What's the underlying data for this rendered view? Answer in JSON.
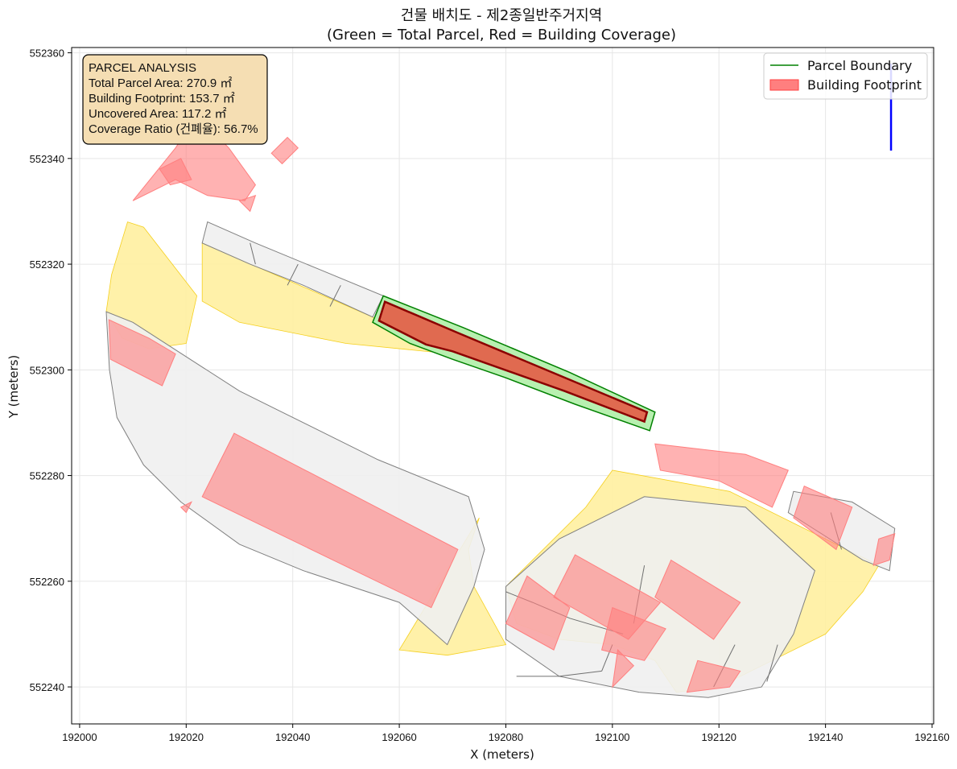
{
  "chart_data": {
    "type": "map",
    "title": "건물 배치도 - 제2종일반주거지역",
    "subtitle": "(Green = Total Parcel, Red = Building Coverage)",
    "xlabel": "X (meters)",
    "ylabel": "Y (meters)",
    "xlim": [
      191998.5,
      192160.3
    ],
    "ylim": [
      552233,
      552361
    ],
    "xticks": [
      192000,
      192020,
      192040,
      192060,
      192080,
      192100,
      192120,
      192140,
      192160
    ],
    "yticks": [
      552240,
      552260,
      552280,
      552300,
      552320,
      552340,
      552360
    ],
    "grid": true,
    "legend": {
      "position": "top-right",
      "items": [
        {
          "label": "Parcel Boundary",
          "color": "#008000",
          "kind": "line"
        },
        {
          "label": "Building Footprint",
          "color": "#ff7f7f",
          "kind": "patch"
        }
      ]
    },
    "info_box": {
      "lines": [
        "PARCEL ANALYSIS",
        "Total Parcel Area: 270.9 ㎡",
        "Building Footprint: 153.7 ㎡",
        "Uncovered Area: 117.2 ㎡",
        "Coverage Ratio (건폐율): 56.7%"
      ]
    },
    "metrics": {
      "total_parcel_area_m2": 270.9,
      "building_footprint_m2": 153.7,
      "uncovered_area_m2": 117.2,
      "coverage_ratio_pct": 56.7
    },
    "colors": {
      "parcel_edge": "#008000",
      "parcel_fill": "#b8f0b0",
      "building_edge": "#8b0000",
      "building_fill": "#e06a50",
      "other_building": "#ff7f7f",
      "road": "#fff0a0",
      "road_edge": "#f5d020",
      "neighbor_fill": "#f0f0f0",
      "neighbor_edge": "#808080",
      "north_arrow": "#0000ff",
      "info_bg": "#f5deb3"
    },
    "north_arrow": {
      "x": 192152.3,
      "y_from": 552341.5,
      "y_to": 552358
    },
    "target_parcel": [
      [
        192055,
        552309
      ],
      [
        192057,
        552314
      ],
      [
        192072,
        552308
      ],
      [
        192092,
        552299.5
      ],
      [
        192108,
        552292
      ],
      [
        192107,
        552288.5
      ],
      [
        192093,
        552293.5
      ],
      [
        192080,
        552298.5
      ],
      [
        192070,
        552302
      ],
      [
        192062,
        552305
      ]
    ],
    "target_building": [
      [
        192056.2,
        552309.3
      ],
      [
        192057.3,
        552312.9
      ],
      [
        192071,
        552307
      ],
      [
        192106.5,
        552292
      ],
      [
        192106,
        552290.2
      ],
      [
        192091,
        552296
      ],
      [
        192070,
        552303.5
      ],
      [
        192065,
        552304.8
      ]
    ],
    "neighbor_parcels": [
      [
        [
          192005,
          552311
        ],
        [
          192005.6,
          552300
        ],
        [
          192007,
          552291
        ],
        [
          192012,
          552282
        ],
        [
          192019,
          552275
        ],
        [
          192030,
          552267
        ],
        [
          192042,
          552262
        ],
        [
          192060,
          552256
        ],
        [
          192069,
          552248
        ],
        [
          192074,
          552259
        ],
        [
          192076,
          552266
        ],
        [
          192073,
          552276
        ],
        [
          192056,
          552283
        ],
        [
          192030,
          552296
        ],
        [
          192010,
          552309
        ]
      ],
      [
        [
          192024,
          552328
        ],
        [
          192023,
          552324
        ],
        [
          192032,
          552320
        ],
        [
          192042,
          552316
        ],
        [
          192055,
          552310
        ],
        [
          192057,
          552314
        ],
        [
          192045,
          552319
        ],
        [
          192033,
          552324
        ]
      ],
      [
        [
          192080,
          552259
        ],
        [
          192090,
          552268
        ],
        [
          192106,
          552276
        ],
        [
          192125,
          552274
        ],
        [
          192138,
          552262
        ],
        [
          192134,
          552250
        ],
        [
          192128,
          552240
        ],
        [
          192118,
          552238
        ],
        [
          192105,
          552239
        ],
        [
          192090,
          552242
        ],
        [
          192080,
          552249
        ]
      ],
      [
        [
          192134,
          552277
        ],
        [
          192133,
          552273
        ],
        [
          192147,
          552264
        ],
        [
          192152,
          552262
        ],
        [
          192153,
          552270
        ],
        [
          192145,
          552275
        ]
      ]
    ],
    "neighbor_lines": [
      [
        [
          192032,
          552324
        ],
        [
          192033,
          552320
        ]
      ],
      [
        [
          192041,
          552320
        ],
        [
          192039,
          552316
        ]
      ],
      [
        [
          192049,
          552316
        ],
        [
          192047,
          552312
        ]
      ],
      [
        [
          192080,
          552258
        ],
        [
          192085,
          552256
        ],
        [
          192092,
          552253
        ],
        [
          192102,
          552250
        ]
      ],
      [
        [
          192082,
          552242
        ],
        [
          192090,
          552242
        ],
        [
          192098,
          552243
        ]
      ],
      [
        [
          192098,
          552243
        ],
        [
          192100,
          552248
        ]
      ],
      [
        [
          192106,
          552263
        ],
        [
          192104,
          552252
        ]
      ],
      [
        [
          192123,
          552248
        ],
        [
          192119,
          552240
        ]
      ],
      [
        [
          192131,
          552248
        ],
        [
          192129,
          552241
        ]
      ],
      [
        [
          192143,
          552266
        ],
        [
          192141,
          552273
        ]
      ]
    ],
    "roads": [
      [
        [
          192005,
          552311
        ],
        [
          192006,
          552318
        ],
        [
          192009,
          552328
        ],
        [
          192012,
          552327
        ],
        [
          192022,
          552314
        ],
        [
          192020,
          552305
        ],
        [
          192013,
          552304
        ],
        [
          192008,
          552306
        ]
      ],
      [
        [
          192023,
          552324
        ],
        [
          192055,
          552310
        ],
        [
          192070,
          552303
        ],
        [
          192050,
          552305
        ],
        [
          192030,
          552309
        ],
        [
          192023,
          552313
        ]
      ],
      [
        [
          192074,
          552259
        ],
        [
          192073,
          552266
        ],
        [
          192075,
          552272
        ],
        [
          192060,
          552247
        ],
        [
          192069,
          552246
        ],
        [
          192080,
          552248
        ]
      ],
      [
        [
          192080,
          552259
        ],
        [
          192095,
          552274
        ],
        [
          192100,
          552281
        ],
        [
          192122,
          552277
        ],
        [
          192150,
          552263
        ],
        [
          192147,
          552258
        ],
        [
          192140,
          552250
        ],
        [
          192130,
          552245
        ],
        [
          192120,
          552240
        ],
        [
          192112,
          552239
        ],
        [
          192108,
          552245
        ],
        [
          192100,
          552248
        ],
        [
          192090,
          552249
        ],
        [
          192082,
          552252
        ]
      ]
    ],
    "other_buildings": [
      [
        [
          192010,
          552332
        ],
        [
          192018,
          552342
        ],
        [
          192022,
          552348
        ],
        [
          192028,
          552342
        ],
        [
          192033,
          552335
        ],
        [
          192031,
          552332
        ],
        [
          192024,
          552333
        ],
        [
          192018,
          552336
        ]
      ],
      [
        [
          192015,
          552338
        ],
        [
          192017,
          552335
        ],
        [
          192021,
          552336
        ],
        [
          192019,
          552340
        ]
      ],
      [
        [
          192036,
          552341
        ],
        [
          192039,
          552344
        ],
        [
          192041,
          552342
        ],
        [
          192038,
          552339
        ]
      ],
      [
        [
          192030,
          552332
        ],
        [
          192033,
          552333
        ],
        [
          192032,
          552330
        ]
      ],
      [
        [
          192005.5,
          552309.5
        ],
        [
          192005.8,
          552302
        ],
        [
          192015.5,
          552297
        ],
        [
          192018,
          552303
        ],
        [
          192013,
          552306
        ]
      ],
      [
        [
          192023,
          552276
        ],
        [
          192029,
          552288
        ],
        [
          192071,
          552266
        ],
        [
          192066,
          552255
        ]
      ],
      [
        [
          192019,
          552274
        ],
        [
          192021,
          552275
        ],
        [
          192020,
          552273
        ]
      ],
      [
        [
          192089,
          552257
        ],
        [
          192093,
          552265
        ],
        [
          192109,
          552256
        ],
        [
          192103,
          552249
        ]
      ],
      [
        [
          192080,
          552252
        ],
        [
          192084,
          552261
        ],
        [
          192092,
          552255
        ],
        [
          192089,
          552247
        ]
      ],
      [
        [
          192108,
          552257
        ],
        [
          192111,
          552264
        ],
        [
          192124,
          552256
        ],
        [
          192119,
          552249
        ]
      ],
      [
        [
          192098,
          552247
        ],
        [
          192100,
          552255
        ],
        [
          192110,
          552251
        ],
        [
          192106,
          552245
        ]
      ],
      [
        [
          192100,
          552240
        ],
        [
          192101,
          552247
        ],
        [
          192104,
          552244
        ]
      ],
      [
        [
          192114,
          552239
        ],
        [
          192116,
          552245
        ],
        [
          192124,
          552243
        ],
        [
          192122,
          552240
        ]
      ],
      [
        [
          192108,
          552286
        ],
        [
          192109,
          552281
        ],
        [
          192120,
          552279
        ],
        [
          192130,
          552274
        ],
        [
          192133,
          552281
        ],
        [
          192125,
          552284
        ]
      ],
      [
        [
          192134,
          552272
        ],
        [
          192136,
          552278
        ],
        [
          192145,
          552274
        ],
        [
          192142,
          552266
        ]
      ],
      [
        [
          192149,
          552263
        ],
        [
          192150,
          552268
        ],
        [
          192153,
          552269
        ],
        [
          192152,
          552264
        ]
      ]
    ]
  }
}
